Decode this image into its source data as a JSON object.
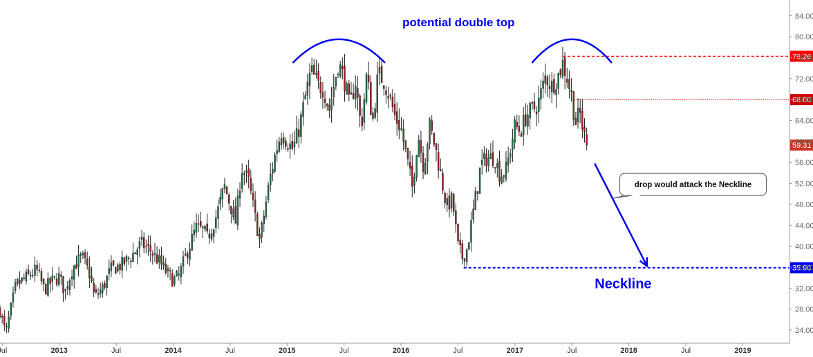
{
  "chart_data": {
    "type": "candlestick",
    "frequency": "weekly",
    "y_axis": {
      "position": "right",
      "range": [
        21.5,
        87
      ],
      "ticks": [
        "84.00",
        "80.00",
        "76.00",
        "72.00",
        "68.00",
        "64.00",
        "60.00",
        "56.00",
        "52.00",
        "48.00",
        "44.00",
        "40.00",
        "36.00",
        "32.00",
        "28.00",
        "24.00"
      ]
    },
    "x_axis": {
      "ticks": [
        {
          "label": "Jul",
          "t": 2012.5
        },
        {
          "label": "2013",
          "t": 2013.0
        },
        {
          "label": "Jul",
          "t": 2013.5
        },
        {
          "label": "2014",
          "t": 2014.0
        },
        {
          "label": "Jul",
          "t": 2014.5
        },
        {
          "label": "2015",
          "t": 2015.0
        },
        {
          "label": "Jul",
          "t": 2015.5
        },
        {
          "label": "2016",
          "t": 2016.0
        },
        {
          "label": "Jul",
          "t": 2016.5
        },
        {
          "label": "2017",
          "t": 2017.0
        },
        {
          "label": "Jul",
          "t": 2017.5
        },
        {
          "label": "2018",
          "t": 2018.0
        },
        {
          "label": "Jul",
          "t": 2018.5
        },
        {
          "label": "2019",
          "t": 2019.0
        }
      ],
      "range": [
        2012.48,
        2019.41
      ]
    },
    "price_path": [
      [
        2012.48,
        27.8
      ],
      [
        2012.53,
        23.2
      ],
      [
        2012.58,
        28.5
      ],
      [
        2012.62,
        32.6
      ],
      [
        2012.7,
        33.8
      ],
      [
        2012.8,
        35.5
      ],
      [
        2012.87,
        31.7
      ],
      [
        2012.92,
        33.0
      ],
      [
        2013.0,
        34.2
      ],
      [
        2013.05,
        31.2
      ],
      [
        2013.12,
        36.0
      ],
      [
        2013.2,
        38.0
      ],
      [
        2013.27,
        34.5
      ],
      [
        2013.31,
        30.2
      ],
      [
        2013.38,
        32.0
      ],
      [
        2013.45,
        35.5
      ],
      [
        2013.55,
        36.5
      ],
      [
        2013.62,
        37.8
      ],
      [
        2013.72,
        40.5
      ],
      [
        2013.8,
        39.2
      ],
      [
        2013.88,
        37.0
      ],
      [
        2013.95,
        34.8
      ],
      [
        2014.0,
        33.5
      ],
      [
        2014.05,
        34.2
      ],
      [
        2014.1,
        37.5
      ],
      [
        2014.2,
        43.5
      ],
      [
        2014.27,
        43.0
      ],
      [
        2014.3,
        41.5
      ],
      [
        2014.38,
        45.8
      ],
      [
        2014.45,
        51.5
      ],
      [
        2014.5,
        48.0
      ],
      [
        2014.55,
        44.5
      ],
      [
        2014.6,
        55.0
      ],
      [
        2014.66,
        52.5
      ],
      [
        2014.72,
        45.5
      ],
      [
        2014.76,
        41.0
      ],
      [
        2014.85,
        53.0
      ],
      [
        2014.9,
        58.0
      ],
      [
        2014.95,
        61.8
      ],
      [
        2015.0,
        60.0
      ],
      [
        2015.05,
        58.5
      ],
      [
        2015.1,
        62.0
      ],
      [
        2015.17,
        69.5
      ],
      [
        2015.21,
        73.5
      ],
      [
        2015.27,
        70.8
      ],
      [
        2015.32,
        70.0
      ],
      [
        2015.37,
        66.0
      ],
      [
        2015.4,
        69.5
      ],
      [
        2015.45,
        75.0
      ],
      [
        2015.5,
        72.0
      ],
      [
        2015.55,
        66.5
      ],
      [
        2015.6,
        71.5
      ],
      [
        2015.65,
        62.5
      ],
      [
        2015.7,
        73.0
      ],
      [
        2015.75,
        63.5
      ],
      [
        2015.8,
        73.0
      ],
      [
        2015.85,
        71.5
      ],
      [
        2015.9,
        68.5
      ],
      [
        2015.95,
        64.5
      ],
      [
        2016.0,
        62.5
      ],
      [
        2016.05,
        57.0
      ],
      [
        2016.1,
        51.0
      ],
      [
        2016.15,
        61.5
      ],
      [
        2016.2,
        55.0
      ],
      [
        2016.25,
        63.0
      ],
      [
        2016.3,
        59.0
      ],
      [
        2016.35,
        53.5
      ],
      [
        2016.4,
        47.5
      ],
      [
        2016.45,
        49.0
      ],
      [
        2016.5,
        40.0
      ],
      [
        2016.54,
        37.8
      ],
      [
        2016.58,
        39.5
      ],
      [
        2016.63,
        46.0
      ],
      [
        2016.7,
        55.5
      ],
      [
        2016.75,
        56.8
      ],
      [
        2016.82,
        57.0
      ],
      [
        2016.87,
        53.5
      ],
      [
        2016.92,
        54.5
      ],
      [
        2016.95,
        57.5
      ],
      [
        2017.0,
        63.0
      ],
      [
        2017.05,
        62.0
      ],
      [
        2017.1,
        65.0
      ],
      [
        2017.2,
        67.0
      ],
      [
        2017.27,
        72.5
      ],
      [
        2017.32,
        70.5
      ],
      [
        2017.37,
        72.0
      ],
      [
        2017.42,
        75.0
      ],
      [
        2017.46,
        72.0
      ],
      [
        2017.5,
        68.5
      ],
      [
        2017.53,
        63.5
      ],
      [
        2017.57,
        65.5
      ],
      [
        2017.6,
        62.0
      ],
      [
        2017.63,
        59.3
      ]
    ],
    "candle_count": 270,
    "annotations": {
      "title": "potential double top",
      "callout": "drop would attack the Neckline",
      "neckline_label": "Neckline",
      "arcs": [
        {
          "from": [
            2015.05,
            75.0
          ],
          "to": [
            2015.86,
            75.0
          ],
          "peak": 79.5
        },
        {
          "from": [
            2017.15,
            75.0
          ],
          "to": [
            2017.85,
            75.0
          ],
          "peak": 79.5
        }
      ],
      "arrow": {
        "from": [
          2017.7,
          55.8
        ],
        "to": [
          2018.16,
          36.2
        ]
      },
      "callout_box": {
        "t": 2017.92,
        "price": 51.8
      },
      "neckline_label_anchor": {
        "t": 2017.95,
        "price": 33.0
      }
    },
    "levels": [
      {
        "label": "76.26",
        "value": 76.26,
        "color": "#ff0000",
        "style": "dashed",
        "from": 2017.42,
        "kind": "top"
      },
      {
        "label": "68.00",
        "value": 68.0,
        "color": "#cc0000",
        "style": "dotted",
        "from": 2017.52,
        "kind": "support"
      },
      {
        "label": "59.31",
        "value": 59.31,
        "color": "#cc3322",
        "style": "none",
        "from": null,
        "kind": "last"
      },
      {
        "label": "35.90",
        "value": 35.9,
        "color": "#0000ee",
        "style": "dashed",
        "from": 2016.55,
        "kind": "neckline"
      }
    ],
    "colors": {
      "up": "#1f7a4a",
      "down": "#a51f1f",
      "annotation_blue": "#0000ee",
      "axis": "#999999",
      "tick_text": "#333333"
    }
  }
}
